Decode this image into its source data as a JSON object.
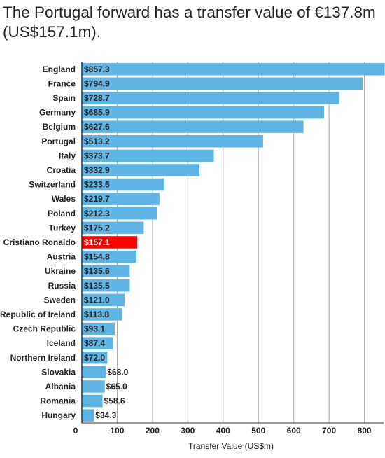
{
  "chart_data": {
    "type": "bar",
    "orientation": "horizontal",
    "title": "The Portugal forward has a transfer value of €137.8m (US$157.1m).",
    "xlabel": "Transfer Value (US$m)",
    "xlim": [
      0,
      900
    ],
    "xticks": [
      0,
      100,
      200,
      300,
      400,
      500,
      600,
      700,
      800
    ],
    "grid": true,
    "colors": {
      "bar": "#5db4e5",
      "highlight": "#ff0000",
      "grid": "#aaaaaa",
      "axis": "#333333"
    },
    "categories": [
      "England",
      "France",
      "Spain",
      "Germany",
      "Belgium",
      "Portugal",
      "Italy",
      "Croatia",
      "Switzerland",
      "Wales",
      "Poland",
      "Turkey",
      "Cristiano Ronaldo",
      "Austria",
      "Ukraine",
      "Russia",
      "Sweden",
      "Republic of Ireland",
      "Czech Republic",
      "Iceland",
      "Northern Ireland",
      "Slovakia",
      "Albania",
      "Romania",
      "Hungary"
    ],
    "values": [
      857.3,
      794.9,
      728.7,
      685.9,
      627.6,
      513.2,
      373.7,
      332.9,
      233.6,
      219.7,
      212.3,
      175.2,
      157.1,
      154.8,
      135.6,
      135.5,
      121.0,
      113.8,
      93.1,
      87.4,
      72.0,
      68.0,
      65.0,
      58.6,
      34.3
    ],
    "value_labels": [
      "$857.3",
      "$794.9",
      "$728.7",
      "$685.9",
      "$627.6",
      "$513.2",
      "$373.7",
      "$332.9",
      "$233.6",
      "$219.7",
      "$212.3",
      "$175.2",
      "$157.1",
      "$154.8",
      "$135.6",
      "$135.5",
      "$121.0",
      "$113.8",
      "$93.1",
      "$87.4",
      "$72.0",
      "$68.0",
      "$65.0",
      "$58.6",
      "$34.3"
    ],
    "highlight": "Cristiano Ronaldo"
  }
}
